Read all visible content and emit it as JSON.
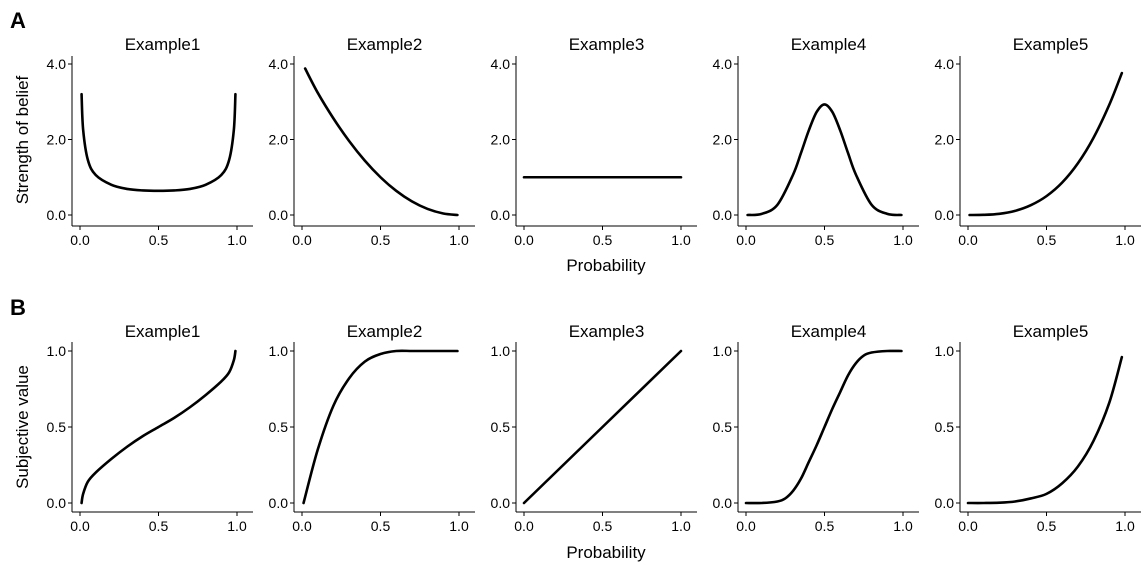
{
  "figure": {
    "rows": [
      {
        "letter": "A",
        "ylabel": "Strength of belief",
        "xlabel": "Probability"
      },
      {
        "letter": "B",
        "ylabel": "Subjective value",
        "xlabel": "Probability"
      }
    ]
  },
  "chart_data": [
    {
      "type": "line",
      "row": "A",
      "title": "Example1",
      "x": [
        0.01,
        0.02,
        0.05,
        0.1,
        0.2,
        0.3,
        0.4,
        0.5,
        0.6,
        0.7,
        0.8,
        0.9,
        0.95,
        0.98,
        0.99
      ],
      "series": [
        {
          "values": [
            3.2,
            2.26,
            1.46,
            1.06,
            0.8,
            0.69,
            0.65,
            0.64,
            0.65,
            0.69,
            0.8,
            1.06,
            1.46,
            2.26,
            3.2
          ]
        }
      ],
      "xlim": [
        0,
        1
      ],
      "ylim": [
        0,
        4
      ],
      "xticks": [
        "0.0",
        "0.5",
        "1.0"
      ],
      "yticks": [
        "0.0",
        "2.0",
        "4.0"
      ]
    },
    {
      "type": "line",
      "row": "A",
      "title": "Example2",
      "x": [
        0.02,
        0.1,
        0.2,
        0.3,
        0.4,
        0.5,
        0.6,
        0.7,
        0.8,
        0.9,
        0.99
      ],
      "series": [
        {
          "values": [
            3.88,
            3.24,
            2.56,
            1.96,
            1.44,
            1.0,
            0.64,
            0.36,
            0.16,
            0.04,
            0.0
          ]
        }
      ],
      "xlim": [
        0,
        1
      ],
      "ylim": [
        0,
        4
      ],
      "xticks": [
        "0.0",
        "0.5",
        "1.0"
      ],
      "yticks": [
        "0.0",
        "2.0",
        "4.0"
      ]
    },
    {
      "type": "line",
      "row": "A",
      "title": "Example3",
      "x": [
        0.0,
        1.0
      ],
      "series": [
        {
          "values": [
            1.0,
            1.0
          ]
        }
      ],
      "xlim": [
        0,
        1
      ],
      "ylim": [
        0,
        4
      ],
      "xticks": [
        "0.0",
        "0.5",
        "1.0"
      ],
      "yticks": [
        "0.0",
        "2.0",
        "4.0"
      ]
    },
    {
      "type": "line",
      "row": "A",
      "title": "Example4",
      "x": [
        0.01,
        0.1,
        0.2,
        0.3,
        0.35,
        0.4,
        0.45,
        0.5,
        0.55,
        0.6,
        0.65,
        0.7,
        0.8,
        0.9,
        0.99
      ],
      "series": [
        {
          "values": [
            0.0,
            0.03,
            0.27,
            1.07,
            1.64,
            2.24,
            2.73,
            2.93,
            2.73,
            2.24,
            1.64,
            1.07,
            0.27,
            0.03,
            0.0
          ]
        }
      ],
      "xlim": [
        0,
        1
      ],
      "ylim": [
        0,
        4
      ],
      "xticks": [
        "0.0",
        "0.5",
        "1.0"
      ],
      "yticks": [
        "0.0",
        "2.0",
        "4.0"
      ]
    },
    {
      "type": "line",
      "row": "A",
      "title": "Example5",
      "x": [
        0.01,
        0.1,
        0.2,
        0.3,
        0.4,
        0.5,
        0.6,
        0.7,
        0.8,
        0.9,
        0.98
      ],
      "series": [
        {
          "values": [
            0.0,
            0.004,
            0.032,
            0.11,
            0.26,
            0.5,
            0.86,
            1.37,
            2.05,
            2.92,
            3.76
          ]
        }
      ],
      "xlim": [
        0,
        1
      ],
      "ylim": [
        0,
        4
      ],
      "xticks": [
        "0.0",
        "0.5",
        "1.0"
      ],
      "yticks": [
        "0.0",
        "2.0",
        "4.0"
      ]
    },
    {
      "type": "line",
      "row": "B",
      "title": "Example1",
      "x": [
        0.01,
        0.02,
        0.05,
        0.1,
        0.2,
        0.3,
        0.4,
        0.5,
        0.6,
        0.7,
        0.8,
        0.9,
        0.95,
        0.98,
        0.99
      ],
      "series": [
        {
          "values": [
            0.0,
            0.06,
            0.14,
            0.2,
            0.29,
            0.37,
            0.44,
            0.5,
            0.56,
            0.63,
            0.71,
            0.8,
            0.86,
            0.94,
            1.0
          ]
        }
      ],
      "xlim": [
        0,
        1
      ],
      "ylim": [
        0,
        1
      ],
      "xticks": [
        "0.0",
        "0.5",
        "1.0"
      ],
      "yticks": [
        "0.0",
        "0.5",
        "1.0"
      ]
    },
    {
      "type": "line",
      "row": "B",
      "title": "Example2",
      "x": [
        0.01,
        0.1,
        0.2,
        0.3,
        0.4,
        0.5,
        0.6,
        0.7,
        0.8,
        0.9,
        0.99
      ],
      "series": [
        {
          "values": [
            0.0,
            0.35,
            0.64,
            0.82,
            0.93,
            0.98,
            1.0,
            1.0,
            1.0,
            1.0,
            1.0
          ]
        }
      ],
      "xlim": [
        0,
        1
      ],
      "ylim": [
        0,
        1
      ],
      "xticks": [
        "0.0",
        "0.5",
        "1.0"
      ],
      "yticks": [
        "0.0",
        "0.5",
        "1.0"
      ]
    },
    {
      "type": "line",
      "row": "B",
      "title": "Example3",
      "x": [
        0.0,
        1.0
      ],
      "series": [
        {
          "values": [
            0.0,
            1.0
          ]
        }
      ],
      "xlim": [
        0,
        1
      ],
      "ylim": [
        0,
        1
      ],
      "xticks": [
        "0.0",
        "0.5",
        "1.0"
      ],
      "yticks": [
        "0.0",
        "0.5",
        "1.0"
      ]
    },
    {
      "type": "line",
      "row": "B",
      "title": "Example4",
      "x": [
        0.0,
        0.1,
        0.2,
        0.25,
        0.3,
        0.35,
        0.4,
        0.45,
        0.5,
        0.55,
        0.6,
        0.65,
        0.7,
        0.75,
        0.8,
        0.9,
        0.99
      ],
      "series": [
        {
          "values": [
            0.0,
            0.0,
            0.01,
            0.03,
            0.08,
            0.16,
            0.27,
            0.38,
            0.5,
            0.62,
            0.73,
            0.84,
            0.92,
            0.97,
            0.99,
            1.0,
            1.0
          ]
        }
      ],
      "xlim": [
        0,
        1
      ],
      "ylim": [
        0,
        1
      ],
      "xticks": [
        "0.0",
        "0.5",
        "1.0"
      ],
      "yticks": [
        "0.0",
        "0.5",
        "1.0"
      ]
    },
    {
      "type": "line",
      "row": "B",
      "title": "Example5",
      "x": [
        0.0,
        0.1,
        0.2,
        0.3,
        0.4,
        0.5,
        0.6,
        0.7,
        0.8,
        0.9,
        0.98
      ],
      "series": [
        {
          "values": [
            0.0,
            0.0,
            0.002,
            0.01,
            0.03,
            0.06,
            0.13,
            0.24,
            0.41,
            0.66,
            0.96
          ]
        }
      ],
      "xlim": [
        0,
        1
      ],
      "ylim": [
        0,
        1
      ],
      "xticks": [
        "0.0",
        "0.5",
        "1.0"
      ],
      "yticks": [
        "0.0",
        "0.5",
        "1.0"
      ]
    }
  ]
}
